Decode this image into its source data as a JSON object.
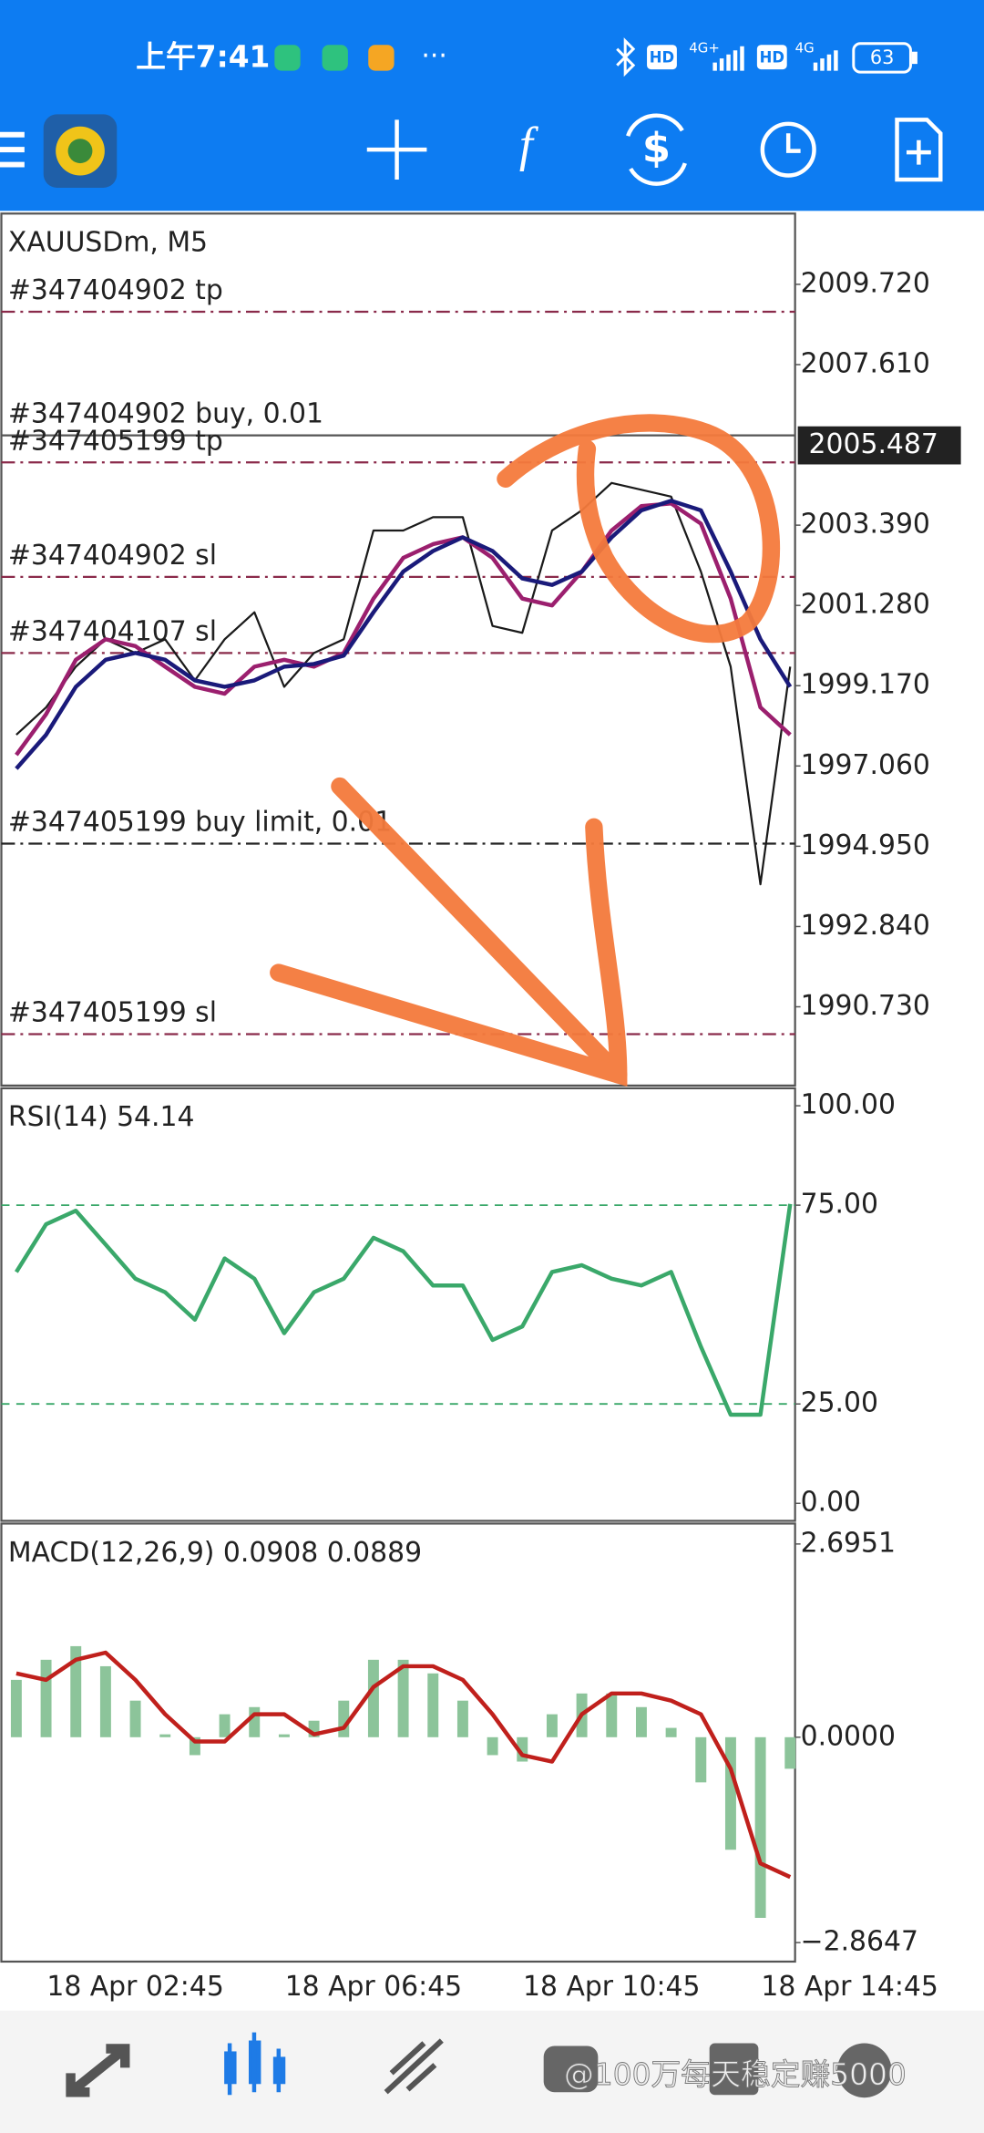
{
  "status_bar": {
    "time": "上午7:41",
    "more": "···",
    "hd_1": "HD",
    "network_1": "4G+",
    "hd_2": "HD",
    "network_2": "4G",
    "battery": "63"
  },
  "toolbar": {
    "function_icon": "f",
    "currency_icon": "$"
  },
  "watermark": "@100万每天稳定赚5000",
  "chart_data": [
    {
      "type": "line",
      "title": "XAUUSDm, M5",
      "ylim": [
        1988.66,
        2011.58
      ],
      "yticks": [
        {
          "value": 2009.72,
          "label": "2009.720"
        },
        {
          "value": 2007.61,
          "label": "2007.610"
        },
        {
          "value": 2003.39,
          "label": "2003.390"
        },
        {
          "value": 2001.28,
          "label": "2001.280"
        },
        {
          "value": 1999.17,
          "label": "1999.170"
        },
        {
          "value": 1997.06,
          "label": "1997.060"
        },
        {
          "value": 1994.95,
          "label": "1994.950"
        },
        {
          "value": 1992.84,
          "label": "1992.840"
        },
        {
          "value": 1990.73,
          "label": "1990.730"
        }
      ],
      "current_price": {
        "value": 2005.487,
        "label": "2005.487"
      },
      "order_lines": [
        {
          "label": "#347404902 tp",
          "value": 2009.0,
          "color": "#8a2a4a",
          "style": "dashdot"
        },
        {
          "label": "#347404902 buy, 0.01",
          "value": 2005.75,
          "color": "#555555",
          "style": "solid"
        },
        {
          "label": "#347405199 tp",
          "value": 2005.04,
          "color": "#8a2a4a",
          "style": "dashdot"
        },
        {
          "label": "#347404902 sl",
          "value": 2002.03,
          "color": "#8a2a4a",
          "style": "dashdot"
        },
        {
          "label": "#347404107 sl",
          "value": 2000.03,
          "color": "#8a2a4a",
          "style": "dashdot"
        },
        {
          "label": "#347405199 buy limit, 0.01",
          "value": 1995.02,
          "color": "#222222",
          "style": "dashdot"
        },
        {
          "label": "#347405199 sl",
          "value": 1990.01,
          "color": "#8a2a4a",
          "style": "dashdot"
        }
      ],
      "series": [
        {
          "name": "Close",
          "color": "#1a1a1a",
          "values": [
            1997.88,
            1998.6,
            1999.67,
            2000.39,
            2000.03,
            2000.39,
            1999.31,
            2000.39,
            2001.1,
            1999.14,
            2000.03,
            2000.39,
            2003.25,
            2003.25,
            2003.6,
            2003.6,
            2000.74,
            2000.56,
            2003.25,
            2003.78,
            2004.5,
            2004.32,
            2004.14,
            2002.17,
            1999.67,
            1993.95,
            1999.67,
            null,
            null
          ]
        },
        {
          "name": "MA fast",
          "color": "#9b1f6e",
          "values": [
            1997.35,
            1998.42,
            1999.85,
            2000.39,
            2000.21,
            1999.67,
            1999.14,
            1998.96,
            1999.67,
            1999.85,
            1999.67,
            2000.03,
            2001.46,
            2002.53,
            2002.89,
            2003.07,
            2002.53,
            2001.46,
            2001.28,
            2002.17,
            2003.25,
            2003.89,
            2003.96,
            2003.43,
            2001.46,
            1998.6,
            1997.88,
            null,
            null
          ]
        },
        {
          "name": "MA slow",
          "color": "#1a1a7a",
          "values": [
            1996.99,
            1997.88,
            1999.14,
            1999.85,
            2000.03,
            1999.85,
            1999.31,
            1999.14,
            1999.31,
            1999.67,
            1999.74,
            1999.96,
            2001.1,
            2002.17,
            2002.71,
            2003.07,
            2002.71,
            2001.99,
            2001.82,
            2002.17,
            2003.07,
            2003.78,
            2004.03,
            2003.78,
            2002.17,
            2000.39,
            1999.14,
            null,
            null
          ]
        }
      ]
    },
    {
      "type": "line",
      "title": "RSI(14) 54.14",
      "ylim": [
        -4.4,
        104.4
      ],
      "yticks": [
        {
          "value": 100,
          "label": "100.00"
        },
        {
          "value": 75,
          "label": "75.00"
        },
        {
          "value": 25,
          "label": "25.00"
        },
        {
          "value": 0,
          "label": "0.00"
        }
      ],
      "levels": [
        75,
        25
      ],
      "level_color": "#3aa86a",
      "series": [
        {
          "name": "RSI",
          "color": "#3aa86a",
          "values": [
            58.2,
            70.2,
            73.6,
            65.1,
            56.5,
            53.1,
            46.2,
            61.6,
            56.5,
            42.8,
            53.1,
            56.5,
            66.8,
            63.4,
            54.8,
            54.8,
            41.1,
            44.5,
            58.2,
            59.9,
            56.5,
            54.8,
            58.2,
            39.4,
            22.3,
            22.3,
            75.3,
            null,
            null
          ]
        }
      ]
    },
    {
      "type": "bar",
      "title": "MACD(12,26,9) 0.0908 0.0889",
      "ylim": [
        -3.13,
        2.98
      ],
      "yticks": [
        {
          "value": 2.6951,
          "label": "2.6951"
        },
        {
          "value": 0,
          "label": "0.0000"
        },
        {
          "value": -2.8647,
          "label": "−2.8647"
        }
      ],
      "categories": [
        null,
        null,
        null,
        null,
        "18 Apr 02:45",
        null,
        null,
        null,
        null,
        null,
        null,
        null,
        "18 Apr 06:45",
        null,
        null,
        null,
        null,
        null,
        null,
        null,
        "18 Apr 10:45",
        null,
        null,
        null,
        null,
        null,
        null,
        null,
        "18 Apr 14:45"
      ],
      "series": [
        {
          "name": "MACD",
          "color": "#8cc49a",
          "values": [
            0.8,
            1.08,
            1.27,
            0.99,
            0.51,
            0.04,
            -0.25,
            0.32,
            0.42,
            0.04,
            0.23,
            0.51,
            1.08,
            1.08,
            0.89,
            0.51,
            -0.25,
            -0.34,
            0.32,
            0.61,
            0.61,
            0.42,
            0.13,
            -0.63,
            -1.57,
            -2.52,
            -0.44,
            null,
            null
          ]
        },
        {
          "name": "Signal",
          "type": "line",
          "color": "#c0201c",
          "values": [
            0.89,
            0.8,
            1.08,
            1.18,
            0.8,
            0.32,
            -0.06,
            -0.06,
            0.32,
            0.32,
            0.04,
            0.13,
            0.7,
            0.99,
            0.99,
            0.8,
            0.32,
            -0.25,
            -0.34,
            0.32,
            0.61,
            0.61,
            0.51,
            0.32,
            -0.44,
            -1.76,
            -1.95,
            null,
            null
          ]
        }
      ]
    }
  ]
}
